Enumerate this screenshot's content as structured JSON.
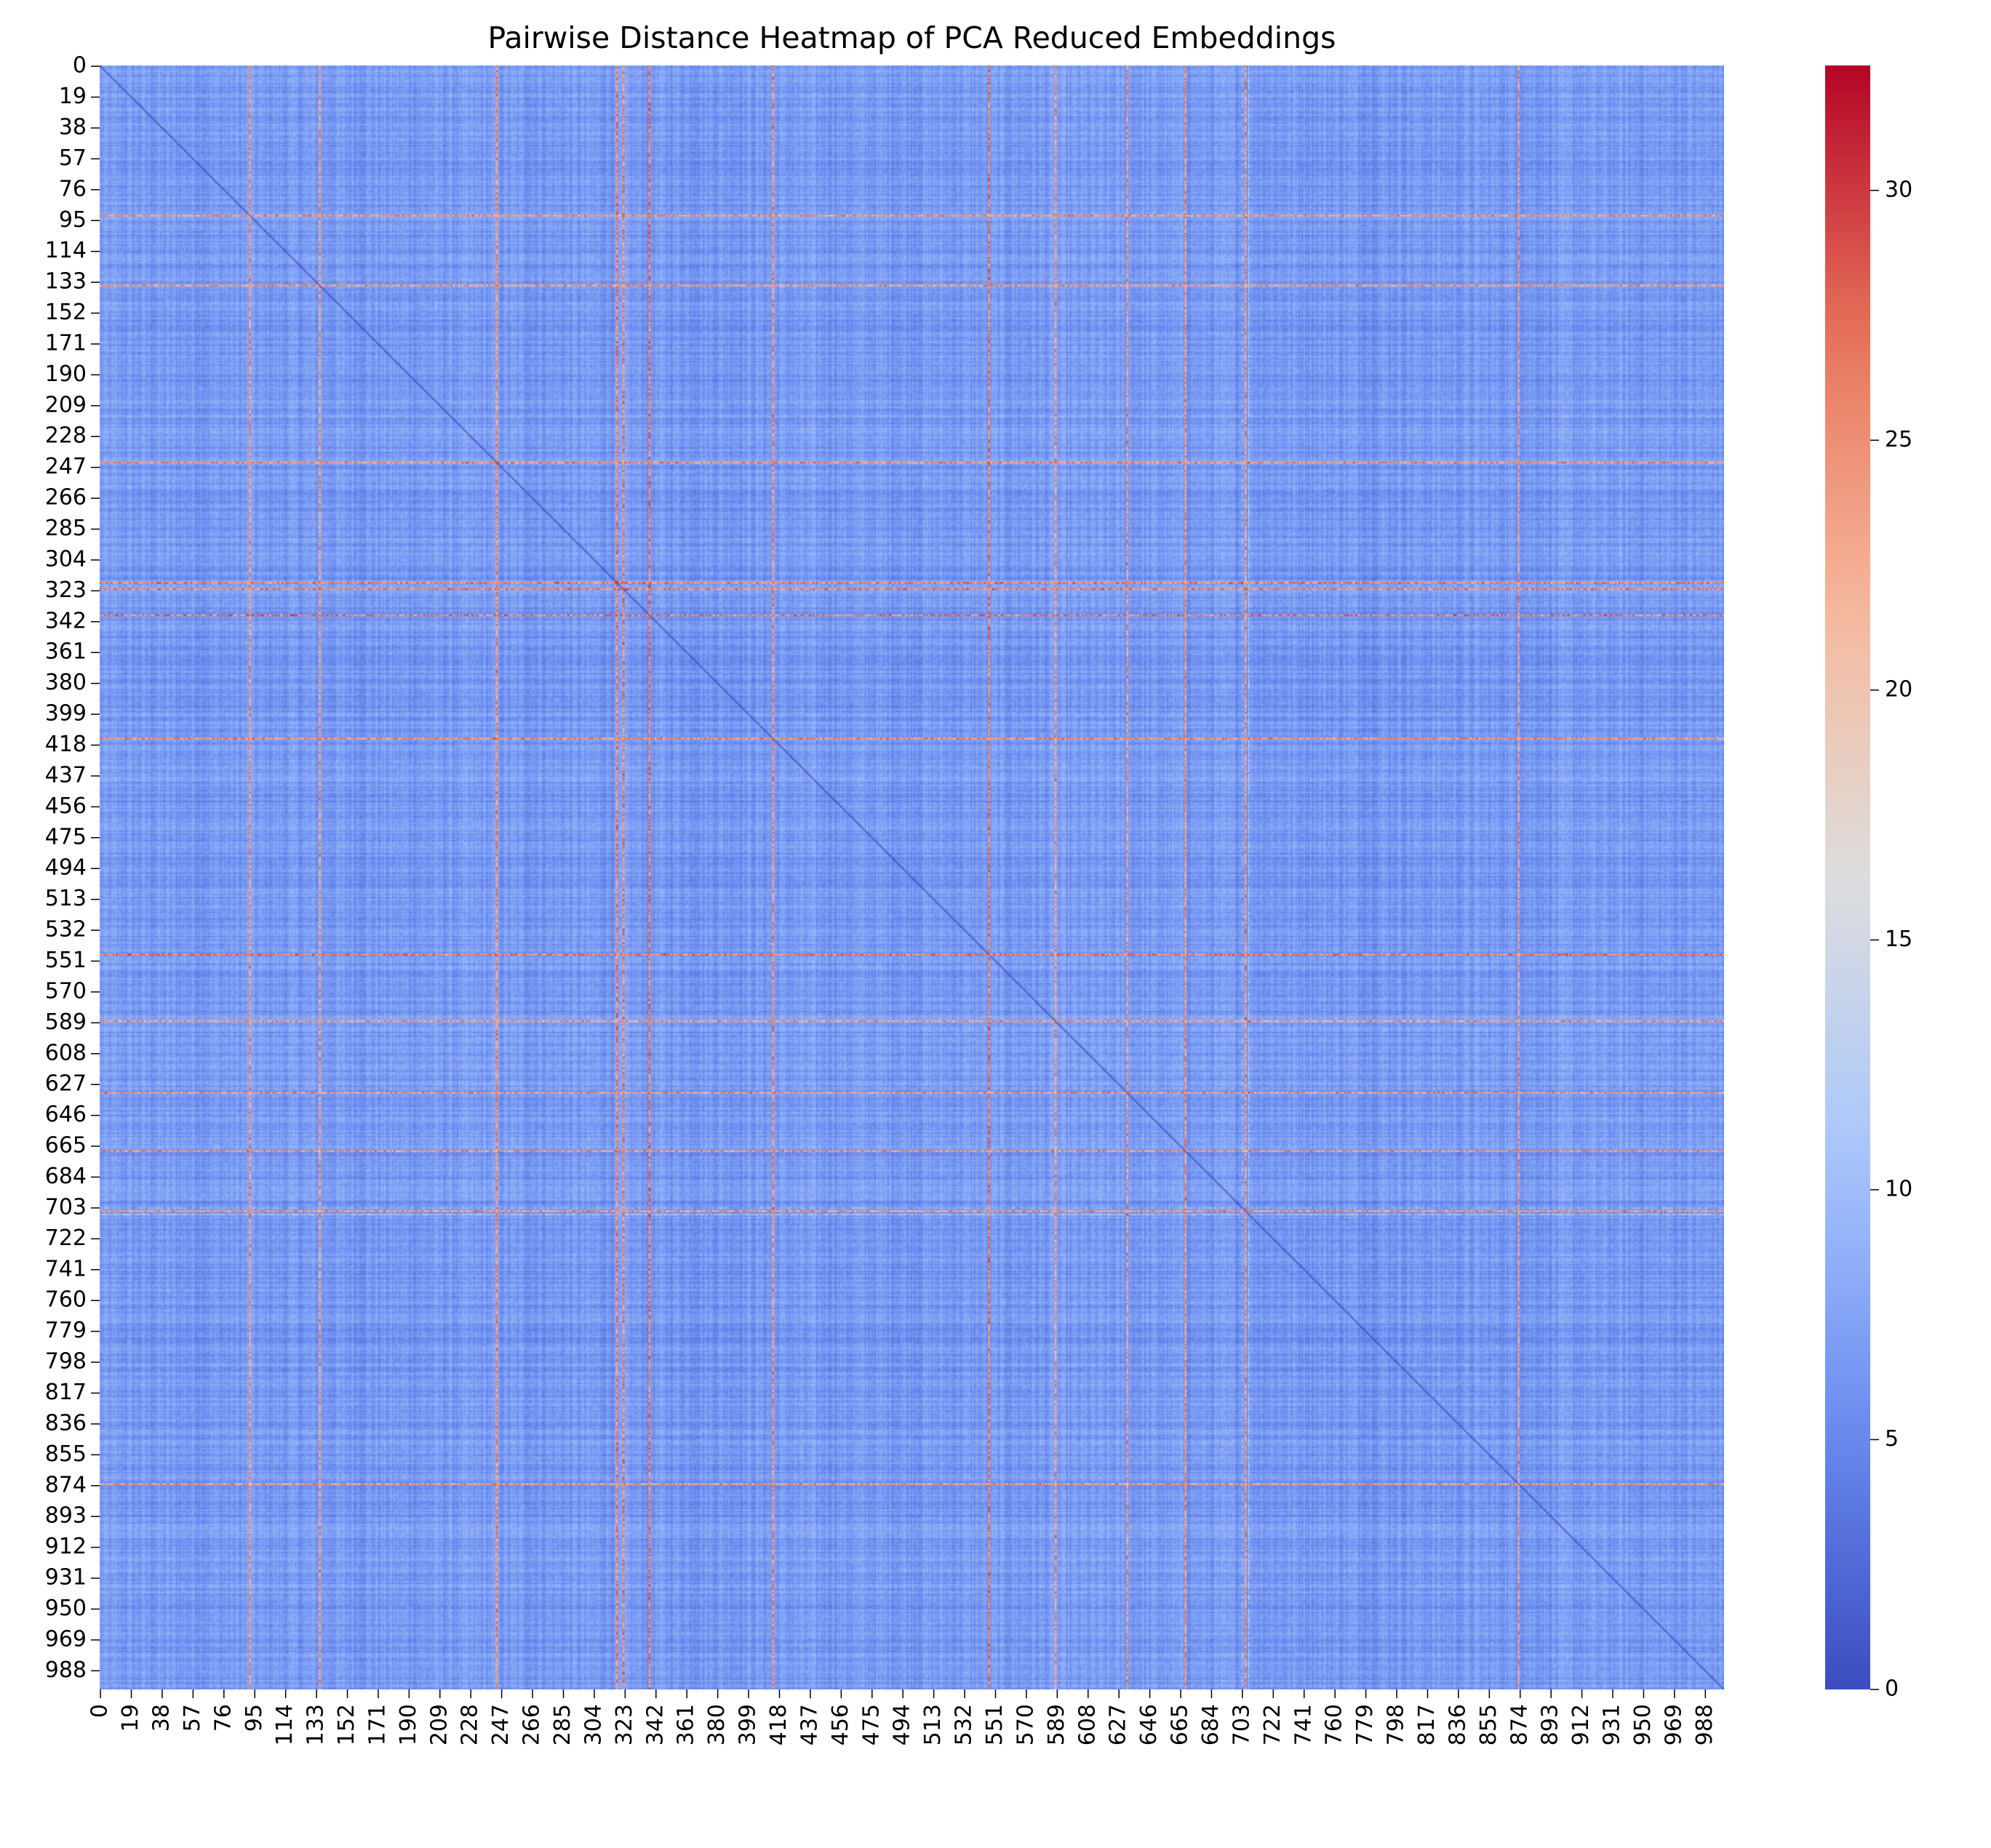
{
  "chart_data": {
    "type": "heatmap",
    "title": "Pairwise Distance Heatmap of PCA Reduced Embeddings",
    "xlabel": "",
    "ylabel": "",
    "n": 1000,
    "colormap": "coolwarm",
    "colormap_stops": [
      "#3b4cc0",
      "#6b8df0",
      "#aac7fd",
      "#dddddd",
      "#f7b89c",
      "#e7745b",
      "#b40426"
    ],
    "colorbar": {
      "min": 0,
      "max": 32.5,
      "ticks": [
        "0",
        "5",
        "10",
        "15",
        "20",
        "25",
        "30"
      ],
      "tick_values": [
        0,
        5,
        10,
        15,
        20,
        25,
        30
      ]
    },
    "x_tick_labels": [
      "0",
      "19",
      "38",
      "57",
      "76",
      "95",
      "114",
      "133",
      "152",
      "171",
      "190",
      "209",
      "228",
      "247",
      "266",
      "285",
      "304",
      "323",
      "342",
      "361",
      "380",
      "399",
      "418",
      "437",
      "456",
      "475",
      "494",
      "513",
      "532",
      "551",
      "570",
      "589",
      "608",
      "627",
      "646",
      "665",
      "684",
      "703",
      "722",
      "741",
      "760",
      "779",
      "798",
      "817",
      "836",
      "855",
      "874",
      "893",
      "912",
      "931",
      "950",
      "969",
      "988"
    ],
    "y_tick_labels": [
      "0",
      "19",
      "38",
      "57",
      "76",
      "95",
      "114",
      "133",
      "152",
      "171",
      "190",
      "209",
      "228",
      "247",
      "266",
      "285",
      "304",
      "323",
      "342",
      "361",
      "380",
      "399",
      "418",
      "437",
      "456",
      "475",
      "494",
      "513",
      "532",
      "551",
      "570",
      "589",
      "608",
      "627",
      "646",
      "665",
      "684",
      "703",
      "722",
      "741",
      "760",
      "779",
      "798",
      "817",
      "836",
      "855",
      "874",
      "893",
      "912",
      "931",
      "950",
      "969",
      "988"
    ],
    "diagonal_value": 0,
    "typical_distance_range": [
      3,
      9
    ],
    "high_distance_indices": [
      92,
      135,
      244,
      318,
      322,
      338,
      414,
      547,
      588,
      632,
      668,
      705,
      873
    ],
    "bright_band_indices": [
      703,
      707
    ],
    "legend": "colorbar-right"
  }
}
